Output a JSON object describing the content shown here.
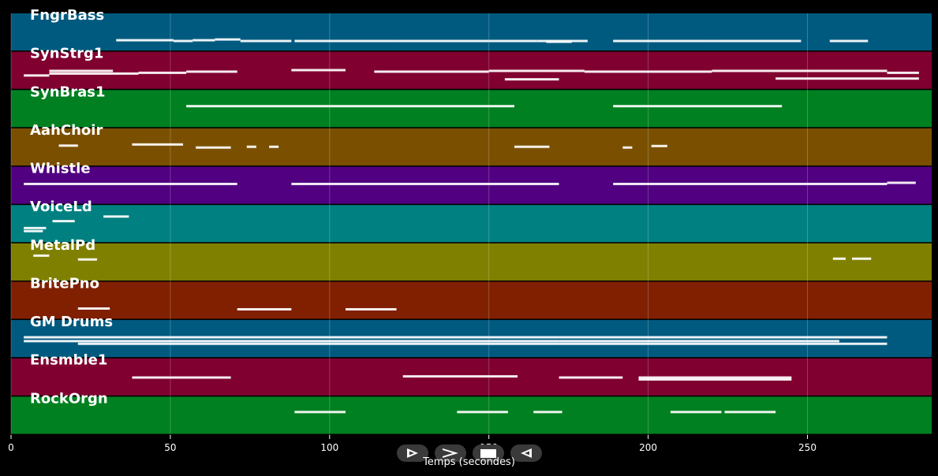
{
  "app": {
    "x_axis_title": "Temps (secondes)"
  },
  "timeline": {
    "x_min": 0,
    "x_max": 289,
    "ticks": [
      0,
      50,
      100,
      150,
      200,
      250
    ],
    "tick_labels": [
      "0",
      "50",
      "100",
      "150",
      "200",
      "250"
    ],
    "grid": true
  },
  "tracks": [
    {
      "name": "FngrBass",
      "color": "#005a80",
      "notes": [
        [
          33,
          51,
          0.7
        ],
        [
          51,
          57,
          0.72
        ],
        [
          57,
          64,
          0.7
        ],
        [
          64,
          72,
          0.68
        ],
        [
          72,
          88,
          0.72
        ],
        [
          89,
          120,
          0.72
        ],
        [
          120,
          150,
          0.72
        ],
        [
          150,
          165,
          0.72
        ],
        [
          165,
          181,
          0.72
        ],
        [
          168,
          176,
          0.74
        ],
        [
          189,
          220,
          0.72
        ],
        [
          220,
          248,
          0.72
        ],
        [
          257,
          269,
          0.72
        ]
      ]
    },
    {
      "name": "SynStrg1",
      "color": "#800030",
      "notes": [
        [
          4,
          12,
          0.62
        ],
        [
          12,
          32,
          0.5
        ],
        [
          12,
          40,
          0.57
        ],
        [
          40,
          55,
          0.55
        ],
        [
          55,
          71,
          0.52
        ],
        [
          88,
          105,
          0.48
        ],
        [
          114,
          150,
          0.52
        ],
        [
          150,
          180,
          0.5
        ],
        [
          155,
          172,
          0.72
        ],
        [
          180,
          220,
          0.52
        ],
        [
          220,
          275,
          0.5
        ],
        [
          240,
          285,
          0.7
        ],
        [
          275,
          285,
          0.55
        ]
      ]
    },
    {
      "name": "SynBras1",
      "color": "#008020",
      "notes": [
        [
          55,
          100,
          0.42
        ],
        [
          100,
          158,
          0.42
        ],
        [
          189,
          242,
          0.42
        ]
      ]
    },
    {
      "name": "AahChoir",
      "color": "#7a5000",
      "notes": [
        [
          15,
          21,
          0.45
        ],
        [
          38,
          54,
          0.42
        ],
        [
          58,
          69,
          0.5
        ],
        [
          74,
          77,
          0.48
        ],
        [
          81,
          84,
          0.48
        ],
        [
          158,
          169,
          0.48
        ],
        [
          192,
          195,
          0.5
        ],
        [
          201,
          206,
          0.46
        ]
      ]
    },
    {
      "name": "Whistle",
      "color": "#500080",
      "notes": [
        [
          4,
          71,
          0.45
        ],
        [
          88,
          172,
          0.45
        ],
        [
          189,
          275,
          0.45
        ],
        [
          275,
          284,
          0.42
        ]
      ]
    },
    {
      "name": "VoiceLd",
      "color": "#008080",
      "notes": [
        [
          4,
          11,
          0.6
        ],
        [
          4,
          10,
          0.68
        ],
        [
          13,
          20,
          0.42
        ],
        [
          29,
          37,
          0.3
        ]
      ]
    },
    {
      "name": "MetalPd",
      "color": "#808000",
      "notes": [
        [
          7,
          12,
          0.32
        ],
        [
          21,
          27,
          0.42
        ],
        [
          258,
          262,
          0.4
        ],
        [
          264,
          270,
          0.4
        ]
      ]
    },
    {
      "name": "BritePno",
      "color": "#802000",
      "notes": [
        [
          21,
          31,
          0.7
        ],
        [
          71,
          88,
          0.72
        ],
        [
          105,
          121,
          0.72
        ]
      ]
    },
    {
      "name": "GM Drums",
      "color": "#005a80",
      "notes": [
        [
          4,
          172,
          0.45
        ],
        [
          21,
          172,
          0.62
        ],
        [
          4,
          172,
          0.55
        ],
        [
          172,
          275,
          0.45
        ],
        [
          172,
          275,
          0.62
        ],
        [
          172,
          260,
          0.55
        ]
      ]
    },
    {
      "name": "Ensmble1",
      "color": "#800030",
      "notes": [
        [
          38,
          69,
          0.5
        ],
        [
          123,
          159,
          0.47
        ],
        [
          172,
          192,
          0.5
        ],
        [
          197,
          245,
          0.5
        ],
        [
          197,
          245,
          0.55
        ]
      ]
    },
    {
      "name": "RockOrgn",
      "color": "#008020",
      "notes": [
        [
          89,
          105,
          0.4
        ],
        [
          140,
          156,
          0.4
        ],
        [
          164,
          173,
          0.4
        ],
        [
          207,
          223,
          0.4
        ],
        [
          224,
          240,
          0.4
        ]
      ]
    }
  ],
  "playback_controls": [
    {
      "name": "play-button",
      "icon": "play-outline-icon"
    },
    {
      "name": "fast-forward-button",
      "icon": "chevron-right-icon"
    },
    {
      "name": "stop-button",
      "icon": "stop-icon"
    },
    {
      "name": "rewind-button",
      "icon": "rewind-outline-icon"
    }
  ]
}
